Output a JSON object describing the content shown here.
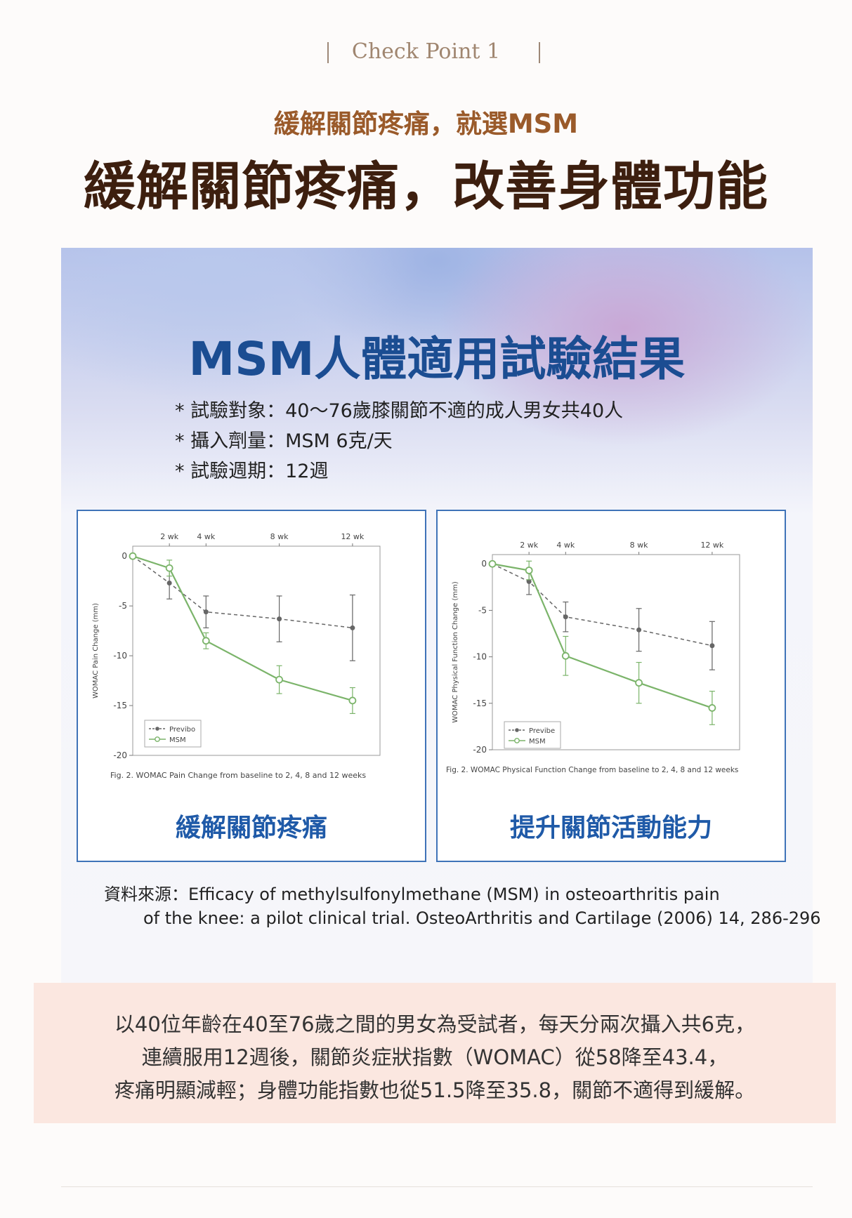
{
  "header": {
    "checkpoint_label": "Check Point 1",
    "subtitle": "緩解關節疼痛，就選MSM",
    "headline": "緩解關節疼痛，改善身體功能"
  },
  "study": {
    "title": "MSM人體適用試驗結果",
    "info": [
      "* 試驗對象：40～76歲膝關節不適的成人男女共40人",
      "* 攝入劑量：MSM 6克/天",
      "* 試驗週期：12週"
    ]
  },
  "colors": {
    "msm": "#7bb46a",
    "placebo": "#666666",
    "accent": "#1f5aa8"
  },
  "chart_data": [
    {
      "type": "line",
      "ylabel": "WOMAC Pain Change (mm)",
      "x_ticks": [
        "2 wk",
        "4 wk",
        "8 wk",
        "12 wk"
      ],
      "x": [
        0,
        2,
        4,
        8,
        12
      ],
      "yticks": [
        0,
        -5,
        -10,
        -15,
        -20
      ],
      "ylim": [
        -20,
        1
      ],
      "series": [
        {
          "name": "Placebo",
          "legend_label": "Previbo",
          "values": [
            0,
            -2.7,
            -5.6,
            -6.3,
            -7.2
          ],
          "errors": [
            0,
            1.6,
            1.6,
            2.3,
            3.3
          ],
          "style": "dashed",
          "color": "#666666"
        },
        {
          "name": "MSM",
          "legend_label": "MSM",
          "values": [
            0,
            -1.2,
            -8.5,
            -12.4,
            -14.5
          ],
          "errors": [
            0,
            0.8,
            0.8,
            1.4,
            1.3
          ],
          "style": "solid",
          "color": "#7bb46a"
        }
      ],
      "figure_caption": "Fig. 2. WOMAC Pain Change from baseline to 2, 4, 8 and 12 weeks",
      "caption": "緩解關節疼痛"
    },
    {
      "type": "line",
      "ylabel": "WOMAC Physical Function Change (mm)",
      "x_ticks": [
        "2 wk",
        "4 wk",
        "8 wk",
        "12 wk"
      ],
      "x": [
        0,
        2,
        4,
        8,
        12
      ],
      "yticks": [
        0,
        -5,
        -10,
        -15,
        -20
      ],
      "ylim": [
        -20,
        1
      ],
      "series": [
        {
          "name": "Placebo",
          "legend_label": "Previbe",
          "values": [
            0,
            -1.9,
            -5.7,
            -7.1,
            -8.8
          ],
          "errors": [
            0,
            1.4,
            1.6,
            2.3,
            2.6
          ],
          "style": "dashed",
          "color": "#666666"
        },
        {
          "name": "MSM",
          "legend_label": "MSM",
          "values": [
            0,
            -0.7,
            -9.9,
            -12.8,
            -15.5
          ],
          "errors": [
            0,
            1.0,
            2.1,
            2.2,
            1.8
          ],
          "style": "solid",
          "color": "#7bb46a"
        }
      ],
      "figure_caption": "Fig. 2. WOMAC Physical Function Change from baseline to 2, 4, 8 and 12 weeks",
      "caption": "提升關節活動能力"
    }
  ],
  "source": {
    "line1": "資料來源：Efficacy of methylsulfonylmethane (MSM) in osteoarthritis pain",
    "line2": "of the knee: a pilot clinical trial. OsteoArthritis and Cartilage (2006) 14, 286-296"
  },
  "summary": {
    "lines": [
      "以40位年齡在40至76歲之間的男女為受試者，每天分兩次攝入共6克，",
      "連續服用12週後，關節炎症狀指數（WOMAC）從58降至43.4，",
      "疼痛明顯減輕；身體功能指數也從51.5降至35.8，關節不適得到緩解。"
    ]
  }
}
